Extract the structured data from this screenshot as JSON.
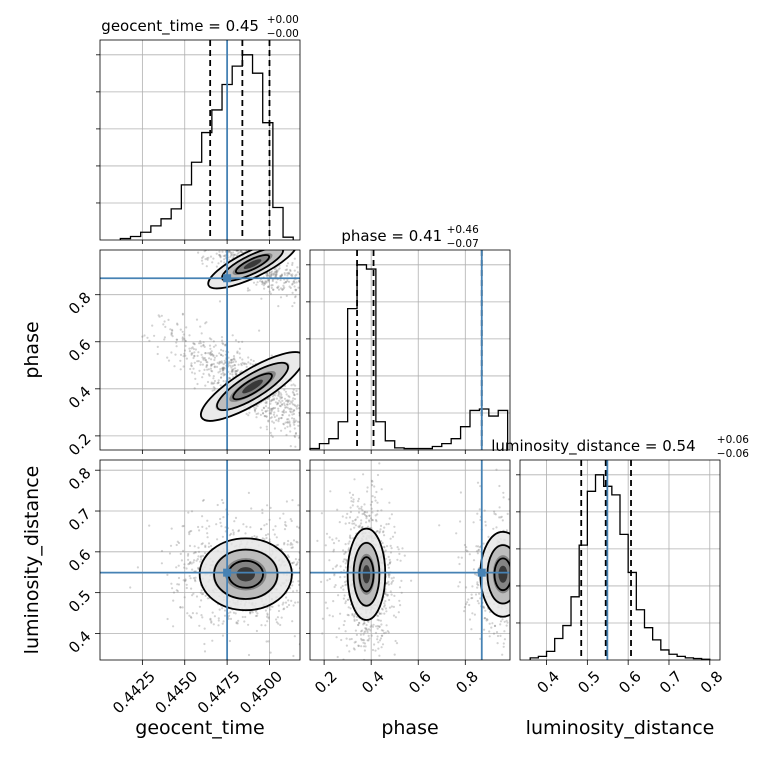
{
  "chart_data": {
    "type": "corner",
    "parameters": [
      {
        "name": "geocent_time",
        "label": "geocent_time",
        "title": {
          "prefix": "geocent_time = 0.45",
          "sup": "+0.00",
          "sub": "−0.00"
        },
        "range": [
          0.44,
          0.4518
        ],
        "ticks": [
          0.4425,
          0.445,
          0.4475,
          0.45
        ],
        "tick_labels": [
          "0.4425",
          "0.4450",
          "0.4475",
          "0.4500"
        ],
        "quantiles": [
          0.4465,
          0.4484,
          0.45
        ],
        "truth": 0.4475,
        "histogram": {
          "edges": [
            0.4412,
            0.4418,
            0.4424,
            0.443,
            0.4436,
            0.4442,
            0.4448,
            0.4454,
            0.446,
            0.4466,
            0.4472,
            0.4478,
            0.4484,
            0.449,
            0.4496,
            0.4502,
            0.4508,
            0.4514
          ],
          "counts": [
            2,
            5,
            11,
            20,
            30,
            44,
            78,
            110,
            152,
            184,
            220,
            246,
            262,
            236,
            166,
            46,
            4
          ]
        }
      },
      {
        "name": "phase",
        "label": "phase",
        "title": {
          "prefix": "phase = 0.41",
          "sup": "+0.46",
          "sub": "−0.07"
        },
        "range": [
          0.14,
          0.99
        ],
        "ticks": [
          0.2,
          0.4,
          0.6,
          0.8
        ],
        "tick_labels": [
          "0.2",
          "0.4",
          "0.6",
          "0.8"
        ],
        "quantiles": [
          0.34,
          0.41,
          0.87
        ],
        "truth": 0.87,
        "histogram": {
          "edges": [
            0.14,
            0.18,
            0.22,
            0.26,
            0.3,
            0.34,
            0.38,
            0.42,
            0.46,
            0.5,
            0.54,
            0.58,
            0.62,
            0.66,
            0.7,
            0.74,
            0.78,
            0.82,
            0.86,
            0.9,
            0.94,
            0.98
          ],
          "counts": [
            2,
            9,
            16,
            40,
            200,
            262,
            256,
            40,
            13,
            3,
            2,
            2,
            2,
            5,
            9,
            16,
            33,
            56,
            58,
            48,
            56
          ]
        }
      },
      {
        "name": "luminosity_distance",
        "label": "luminosity_distance",
        "title": {
          "prefix": "luminosity_distance = 0.54",
          "sup": "+0.06",
          "sub": "−0.06"
        },
        "range": [
          0.335,
          0.825
        ],
        "ticks": [
          0.4,
          0.5,
          0.6,
          0.7,
          0.8
        ],
        "tick_labels": [
          "0.4",
          "0.5",
          "0.6",
          "0.7",
          "0.8"
        ],
        "quantiles": [
          0.485,
          0.545,
          0.607
        ],
        "truth": 0.549,
        "histogram": {
          "edges": [
            0.36,
            0.38,
            0.4,
            0.42,
            0.44,
            0.46,
            0.48,
            0.5,
            0.52,
            0.54,
            0.56,
            0.58,
            0.6,
            0.62,
            0.64,
            0.66,
            0.68,
            0.7,
            0.72,
            0.74,
            0.76,
            0.78,
            0.8
          ],
          "counts": [
            3,
            5,
            12,
            30,
            48,
            88,
            160,
            235,
            258,
            242,
            230,
            175,
            122,
            70,
            45,
            28,
            14,
            8,
            5,
            3,
            2,
            1
          ]
        }
      }
    ],
    "joint": [
      {
        "x": "geocent_time",
        "y": "phase",
        "modes": [
          {
            "cx": 0.449,
            "cy": 0.41,
            "a": 0.0022,
            "b": 0.045,
            "rot": 0.55,
            "weight": 1.0
          },
          {
            "cx": 0.449,
            "cy": 0.93,
            "a": 0.0018,
            "b": 0.035,
            "rot": 0.45,
            "weight": 0.7
          }
        ],
        "contour_levels": 3
      },
      {
        "x": "geocent_time",
        "y": "luminosity_distance",
        "modes": [
          {
            "cx": 0.4486,
            "cy": 0.545,
            "a": 0.0017,
            "b": 0.055,
            "rot": 0.0,
            "weight": 1.0
          }
        ],
        "contour_levels": 3
      },
      {
        "x": "phase",
        "y": "luminosity_distance",
        "modes": [
          {
            "cx": 0.38,
            "cy": 0.545,
            "a": 0.05,
            "b": 0.07,
            "rot": 0.0,
            "weight": 1.0
          },
          {
            "cx": 0.96,
            "cy": 0.545,
            "a": 0.06,
            "b": 0.065,
            "rot": 0.0,
            "weight": 0.55
          }
        ],
        "contour_levels": 3
      }
    ],
    "truth_color": "#4682b4",
    "grid": true,
    "quantile_style": "dashed black"
  }
}
